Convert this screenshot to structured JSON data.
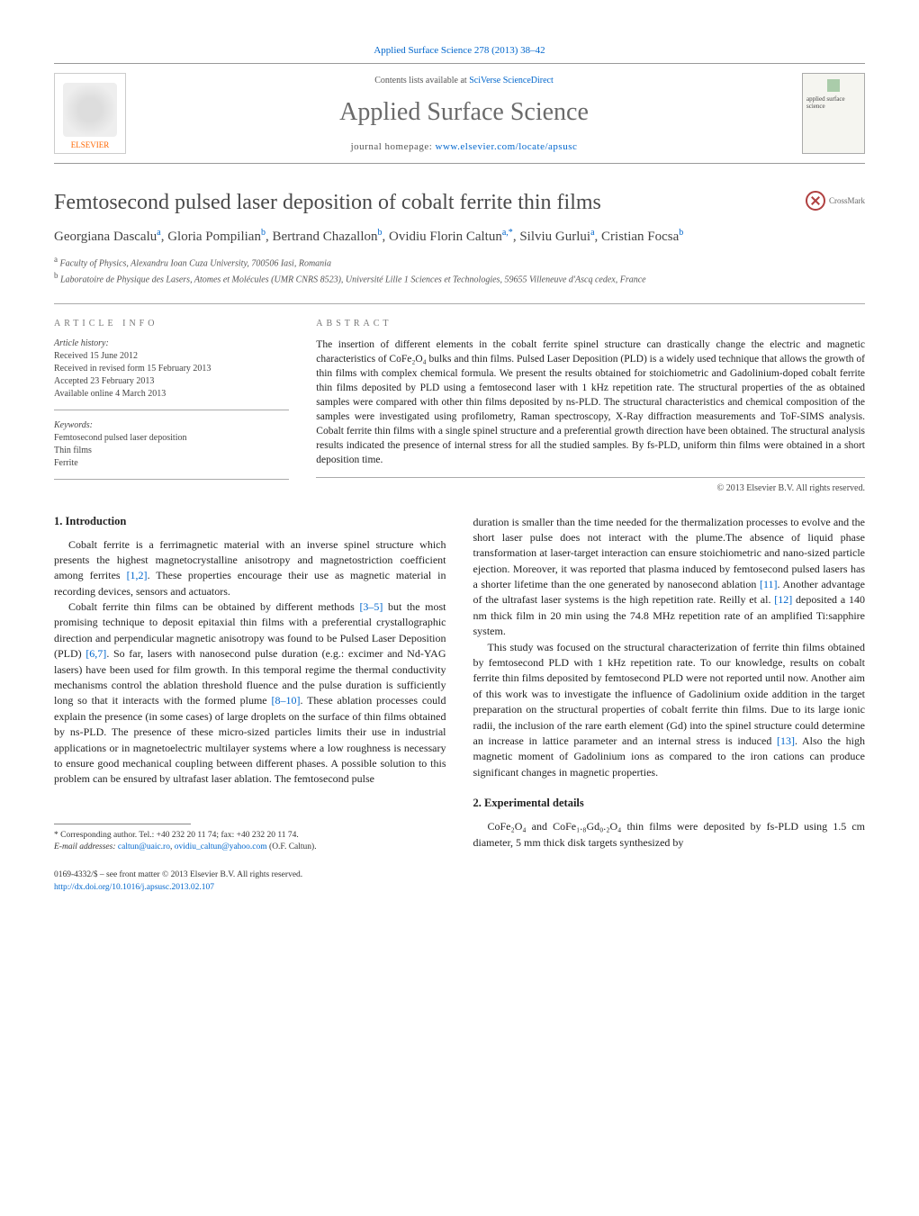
{
  "journal_ref": "Applied Surface Science 278 (2013) 38–42",
  "banner": {
    "contents_line_pre": "Contents lists available at ",
    "contents_line_link": "SciVerse ScienceDirect",
    "journal_name": "Applied Surface Science",
    "homepage_pre": "journal homepage: ",
    "homepage_link": "www.elsevier.com/locate/apsusc",
    "publisher": "ELSEVIER",
    "cover_text": "applied surface science"
  },
  "title": "Femtosecond pulsed laser deposition of cobalt ferrite thin films",
  "crossmark": "CrossMark",
  "authors_html": "Georgiana Dascalu<sup>a</sup>, Gloria Pompilian<sup>b</sup>, Bertrand Chazallon<sup>b</sup>, Ovidiu Florin Caltun<sup>a,*</sup>, Silviu Gurlui<sup>a</sup>, Cristian Focsa<sup>b</sup>",
  "affiliations": {
    "a": "Faculty of Physics, Alexandru Ioan Cuza University, 700506 Iasi, Romania",
    "b": "Laboratoire de Physique des Lasers, Atomes et Molécules (UMR CNRS 8523), Université Lille 1 Sciences et Technologies, 59655 Villeneuve d'Ascq cedex, France"
  },
  "article_info_label": "ARTICLE INFO",
  "abstract_label": "ABSTRACT",
  "history": {
    "hdr": "Article history:",
    "received": "Received 15 June 2012",
    "revised": "Received in revised form 15 February 2013",
    "accepted": "Accepted 23 February 2013",
    "online": "Available online 4 March 2013"
  },
  "keywords": {
    "hdr": "Keywords:",
    "k1": "Femtosecond pulsed laser deposition",
    "k2": "Thin films",
    "k3": "Ferrite"
  },
  "abstract": "The insertion of different elements in the cobalt ferrite spinel structure can drastically change the electric and magnetic characteristics of CoFe₂O₄ bulks and thin films. Pulsed Laser Deposition (PLD) is a widely used technique that allows the growth of thin films with complex chemical formula. We present the results obtained for stoichiometric and Gadolinium-doped cobalt ferrite thin films deposited by PLD using a femtosecond laser with 1 kHz repetition rate. The structural properties of the as obtained samples were compared with other thin films deposited by ns-PLD. The structural characteristics and chemical composition of the samples were investigated using profilometry, Raman spectroscopy, X-Ray diffraction measurements and ToF-SIMS analysis. Cobalt ferrite thin films with a single spinel structure and a preferential growth direction have been obtained. The structural analysis results indicated the presence of internal stress for all the studied samples. By fs-PLD, uniform thin films were obtained in a short deposition time.",
  "copyright": "© 2013 Elsevier B.V. All rights reserved.",
  "intro_heading": "1. Introduction",
  "intro_p1": "Cobalt ferrite is a ferrimagnetic material with an inverse spinel structure which presents the highest magnetocrystalline anisotropy and magnetostriction coefficient among ferrites ",
  "intro_p1_ref": "[1,2]",
  "intro_p1_tail": ". These properties encourage their use as magnetic material in recording devices, sensors and actuators.",
  "intro_p2a": "Cobalt ferrite thin films can be obtained by different methods ",
  "intro_p2_ref1": "[3–5]",
  "intro_p2b": " but the most promising technique to deposit epitaxial thin films with a preferential crystallographic direction and perpendicular magnetic anisotropy was found to be Pulsed Laser Deposition (PLD) ",
  "intro_p2_ref2": "[6,7]",
  "intro_p2c": ". So far, lasers with nanosecond pulse duration (e.g.: excimer and Nd-YAG lasers) have been used for film growth. In this temporal regime the thermal conductivity mechanisms control the ablation threshold fluence and the pulse duration is sufficiently long so that it interacts with the formed plume ",
  "intro_p2_ref3": "[8–10]",
  "intro_p2d": ". These ablation processes could explain the presence (in some cases) of large droplets on the surface of thin films obtained by ns-PLD. The presence of these micro-sized particles limits their use in industrial applications or in magnetoelectric multilayer systems where a low roughness is necessary to ensure good mechanical coupling between different phases. A possible solution to this problem can be ensured by ultrafast laser ablation. The femtosecond pulse",
  "col2_p1a": "duration is smaller than the time needed for the thermalization processes to evolve and the short laser pulse does not interact with the plume.The absence of liquid phase transformation at laser-target interaction can ensure stoichiometric and nano-sized particle ejection. Moreover, it was reported that plasma induced by femtosecond pulsed lasers has a shorter lifetime than the one generated by nanosecond ablation ",
  "col2_p1_ref1": "[11]",
  "col2_p1b": ". Another advantage of the ultrafast laser systems is the high repetition rate. Reilly et al. ",
  "col2_p1_ref2": "[12]",
  "col2_p1c": " deposited a 140 nm thick film in 20 min using the 74.8 MHz repetition rate of an amplified Ti:sapphire system.",
  "col2_p2a": "This study was focused on the structural characterization of ferrite thin films obtained by femtosecond PLD with 1 kHz repetition rate. To our knowledge, results on cobalt ferrite thin films deposited by femtosecond PLD were not reported until now. Another aim of this work was to investigate the influence of Gadolinium oxide addition in the target preparation on the structural properties of cobalt ferrite thin films. Due to its large ionic radii, the inclusion of the rare earth element (Gd) into the spinel structure could determine an increase in lattice parameter and an internal stress is induced ",
  "col2_p2_ref": "[13]",
  "col2_p2b": ". Also the high magnetic moment of Gadolinium ions as compared to the iron cations can produce significant changes in magnetic properties.",
  "exp_heading": "2. Experimental details",
  "exp_p1": "CoFe₂O₄ and CoFe₁.₈Gd₀.₂O₄ thin films were deposited by fs-PLD using 1.5 cm diameter, 5 mm thick disk targets synthesized by",
  "footnote": {
    "star": "* Corresponding author. Tel.: +40 232 20 11 74; fax: +40 232 20 11 74.",
    "email_label": "E-mail addresses: ",
    "email1": "caltun@uaic.ro",
    "email_sep": ", ",
    "email2": "ovidiu_caltun@yahoo.com",
    "email_tail": " (O.F. Caltun)."
  },
  "footer": {
    "line1": "0169-4332/$ – see front matter © 2013 Elsevier B.V. All rights reserved.",
    "doi": "http://dx.doi.org/10.1016/j.apsusc.2013.02.107"
  },
  "colors": {
    "link": "#0066cc",
    "text": "#222222",
    "muted": "#555555",
    "rule": "#aaaaaa"
  }
}
